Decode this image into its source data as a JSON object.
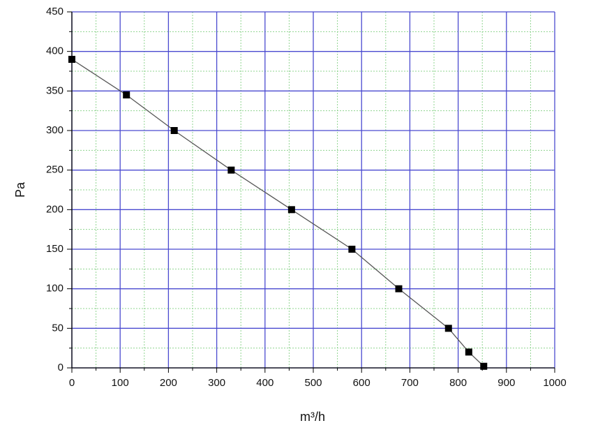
{
  "chart_data": {
    "type": "line",
    "x_label": "m³/h",
    "y_label": "Pa",
    "series": [
      {
        "name": "Pa",
        "color": "#555555",
        "marker_color": "#000000",
        "x": [
          0,
          113,
          212,
          330,
          455,
          580,
          677,
          780,
          822,
          853
        ],
        "values": [
          390,
          345,
          300,
          250,
          200,
          150,
          100,
          50,
          20,
          2
        ]
      }
    ],
    "xlim": [
      0,
      1000
    ],
    "xticks": [
      0,
      100,
      200,
      300,
      400,
      500,
      600,
      700,
      800,
      900,
      1000
    ],
    "ylim": [
      0,
      450
    ],
    "yticks": [
      0,
      50,
      100,
      150,
      200,
      250,
      300,
      350,
      400,
      450
    ],
    "grid": true,
    "minor_grid": true,
    "grid_color": "#4a4ad0",
    "minor_grid_color": "#8fd48f"
  }
}
